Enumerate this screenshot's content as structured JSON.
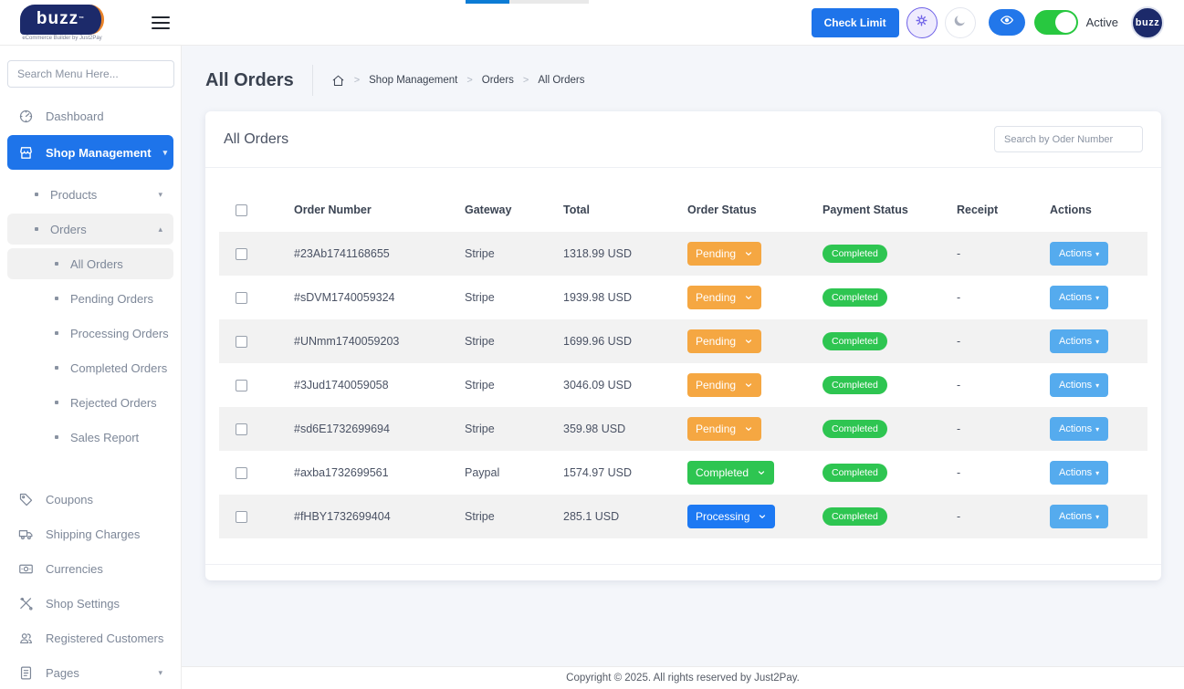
{
  "colors": {
    "primary": "#1e74ea",
    "actions": "#55abee",
    "pending": "#f5a742",
    "completed": "#2ec551",
    "processing": "#1d79f3",
    "toggle_on": "#28c840",
    "eye_button": "#2277ea"
  },
  "topbar": {
    "logo_text": "buzz",
    "logo_tagline": "eCommerce Builder by Just2Pay",
    "check_limit_label": "Check Limit",
    "active_label": "Active",
    "avatar_text": "buzz"
  },
  "sidebar": {
    "search_placeholder": "Search Menu Here...",
    "items": [
      {
        "label": "Dashboard",
        "icon": "dashboard",
        "indent": 0,
        "state": "normal",
        "chevron": ""
      },
      {
        "label": "Shop Management",
        "icon": "shop",
        "indent": 0,
        "state": "active",
        "chevron": "down"
      },
      {
        "label": "Products",
        "icon": "dot",
        "indent": 1,
        "state": "normal",
        "chevron": "down"
      },
      {
        "label": "Orders",
        "icon": "dot",
        "indent": 1,
        "state": "open",
        "chevron": "up"
      },
      {
        "label": "All Orders",
        "icon": "dot",
        "indent": 2,
        "state": "selected",
        "chevron": ""
      },
      {
        "label": "Pending Orders",
        "icon": "dot",
        "indent": 2,
        "state": "normal",
        "chevron": ""
      },
      {
        "label": "Processing Orders",
        "icon": "dot",
        "indent": 2,
        "state": "normal",
        "chevron": ""
      },
      {
        "label": "Completed Orders",
        "icon": "dot",
        "indent": 2,
        "state": "normal",
        "chevron": ""
      },
      {
        "label": "Rejected Orders",
        "icon": "dot",
        "indent": 2,
        "state": "normal",
        "chevron": ""
      },
      {
        "label": "Sales Report",
        "icon": "dot",
        "indent": 2,
        "state": "normal",
        "chevron": "",
        "gap_after": true
      },
      {
        "label": "Coupons",
        "icon": "tag",
        "indent": 0,
        "state": "normal",
        "chevron": ""
      },
      {
        "label": "Shipping Charges",
        "icon": "truck",
        "indent": 0,
        "state": "normal",
        "chevron": ""
      },
      {
        "label": "Currencies",
        "icon": "banknote",
        "indent": 0,
        "state": "normal",
        "chevron": ""
      },
      {
        "label": "Shop Settings",
        "icon": "tools",
        "indent": 0,
        "state": "normal",
        "chevron": ""
      },
      {
        "label": "Registered Customers",
        "icon": "users",
        "indent": 0,
        "state": "normal",
        "chevron": ""
      },
      {
        "label": "Pages",
        "icon": "pages",
        "indent": 0,
        "state": "normal",
        "chevron": "down"
      }
    ]
  },
  "page": {
    "title": "All Orders",
    "breadcrumb": [
      "Shop Management",
      "Orders",
      "All Orders"
    ]
  },
  "card": {
    "title": "All Orders",
    "search_placeholder": "Search by Oder Number"
  },
  "table": {
    "headers": [
      "Order Number",
      "Gateway",
      "Total",
      "Order Status",
      "Payment Status",
      "Receipt",
      "Actions"
    ],
    "actions_label": "Actions",
    "rows": [
      {
        "order_number": "#23Ab1741168655",
        "gateway": "Stripe",
        "total": "1318.99 USD",
        "order_status": "Pending",
        "payment_status": "Completed",
        "receipt": "-"
      },
      {
        "order_number": "#sDVM1740059324",
        "gateway": "Stripe",
        "total": "1939.98 USD",
        "order_status": "Pending",
        "payment_status": "Completed",
        "receipt": "-"
      },
      {
        "order_number": "#UNmm1740059203",
        "gateway": "Stripe",
        "total": "1699.96 USD",
        "order_status": "Pending",
        "payment_status": "Completed",
        "receipt": "-"
      },
      {
        "order_number": "#3Jud1740059058",
        "gateway": "Stripe",
        "total": "3046.09 USD",
        "order_status": "Pending",
        "payment_status": "Completed",
        "receipt": "-"
      },
      {
        "order_number": "#sd6E1732699694",
        "gateway": "Stripe",
        "total": "359.98 USD",
        "order_status": "Pending",
        "payment_status": "Completed",
        "receipt": "-"
      },
      {
        "order_number": "#axba1732699561",
        "gateway": "Paypal",
        "total": "1574.97 USD",
        "order_status": "Completed",
        "payment_status": "Completed",
        "receipt": "-"
      },
      {
        "order_number": "#fHBY1732699404",
        "gateway": "Stripe",
        "total": "285.1 USD",
        "order_status": "Processing",
        "payment_status": "Completed",
        "receipt": "-"
      }
    ]
  },
  "footer": {
    "copyright": "Copyright © 2025. All rights reserved by Just2Pay."
  }
}
